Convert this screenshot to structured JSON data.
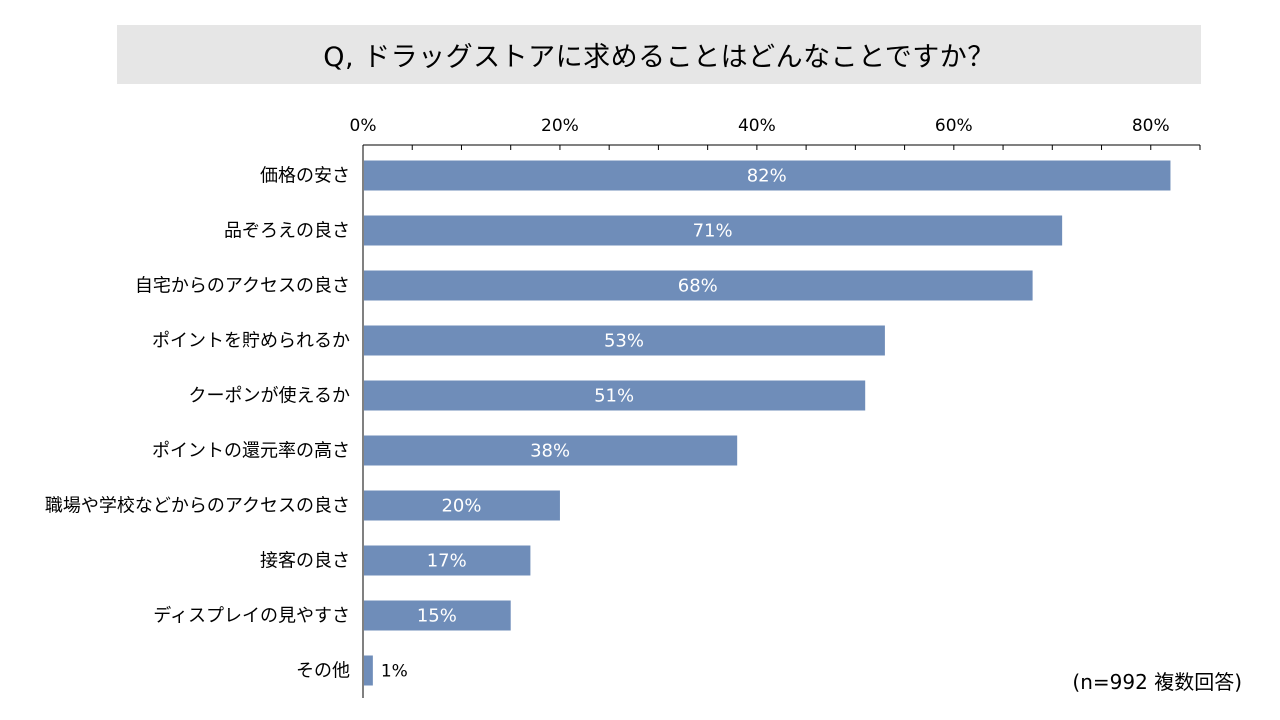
{
  "title": "Q, ドラッグストアに求めることはどんなことですか？",
  "note": "(n=992 複数回答)",
  "chart_data": {
    "type": "bar",
    "orientation": "horizontal",
    "categories": [
      "価格の安さ",
      "品ぞろえの良さ",
      "自宅からのアクセスの良さ",
      "ポイントを貯められるか",
      "クーポンが使えるか",
      "ポイントの還元率の高さ",
      "職場や学校などからのアクセスの良さ",
      "接客の良さ",
      "ディスプレイの見やすさ",
      "その他"
    ],
    "values": [
      82,
      71,
      68,
      53,
      51,
      38,
      20,
      17,
      15,
      1
    ],
    "value_labels": [
      "82%",
      "71%",
      "68%",
      "53%",
      "51%",
      "38%",
      "20%",
      "17%",
      "15%",
      "1%"
    ],
    "x_ticks": [
      "0%",
      "20%",
      "40%",
      "60%",
      "80%"
    ],
    "x_tick_values": [
      0,
      20,
      40,
      60,
      80
    ],
    "xlim": [
      0,
      85
    ],
    "x_axis_position": "top",
    "grid": false,
    "bar_color": "#6f8db9",
    "label_color": "#ffffff",
    "axis_color": "#000000"
  }
}
